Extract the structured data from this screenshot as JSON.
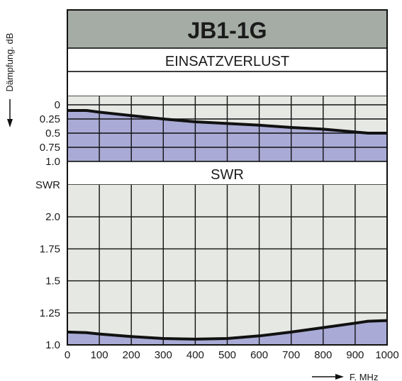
{
  "chart_data": [
    {
      "type": "area",
      "title": "JB1-1G",
      "subtitle": "EINSATZVERLUST",
      "ylabel": "Dämpfung. dB",
      "xlabel": "F. MHz",
      "x_ticks": [
        "0",
        "100",
        "200",
        "300",
        "400",
        "500",
        "600",
        "700",
        "800",
        "900",
        "1000"
      ],
      "y_ticks": [
        "0",
        "0.25",
        "0.5",
        "0.75",
        "1.0"
      ],
      "ylim": [
        0,
        1.0
      ],
      "y_inverted": true,
      "xlim": [
        0,
        1000
      ],
      "grid": true,
      "series": [
        {
          "x": [
            0,
            60,
            100,
            200,
            300,
            400,
            500,
            600,
            700,
            800,
            900,
            940,
            1000
          ],
          "values": [
            0.1,
            0.1,
            0.13,
            0.19,
            0.25,
            0.3,
            0.33,
            0.36,
            0.4,
            0.43,
            0.48,
            0.5,
            0.5
          ]
        }
      ]
    },
    {
      "type": "area",
      "title": "SWR",
      "ylabel": "SWR",
      "x_ticks": [
        "0",
        "100",
        "200",
        "300",
        "400",
        "500",
        "600",
        "700",
        "800",
        "900",
        "1000"
      ],
      "y_ticks": [
        "1.0",
        "1.25",
        "1.5",
        "1.75",
        "2.0"
      ],
      "ylim": [
        1.0,
        2.25
      ],
      "xlim": [
        0,
        1000
      ],
      "grid": true,
      "series": [
        {
          "x": [
            0,
            60,
            100,
            200,
            300,
            400,
            500,
            600,
            700,
            800,
            900,
            940,
            1000
          ],
          "values": [
            1.1,
            1.095,
            1.085,
            1.065,
            1.05,
            1.045,
            1.05,
            1.07,
            1.1,
            1.135,
            1.17,
            1.185,
            1.19
          ]
        }
      ]
    }
  ],
  "colors": {
    "header_bg": "#a5aba5",
    "plot_bg": "#e6e8e4",
    "fill": "#a9abd6",
    "curve": "#111111",
    "grid": "#111111"
  }
}
